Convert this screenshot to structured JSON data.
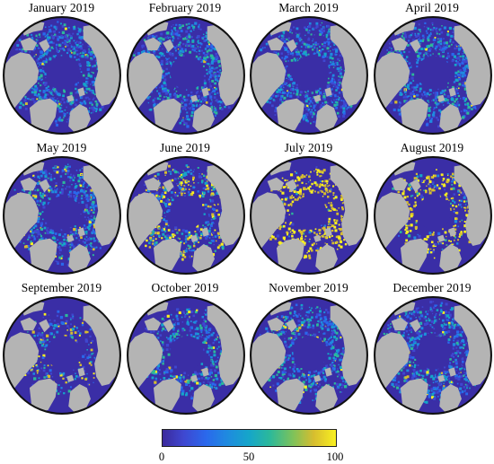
{
  "panels": [
    {
      "title": "January  2019",
      "yellow": 0.02,
      "cover": 0.92
    },
    {
      "title": "February  2019",
      "yellow": 0.02,
      "cover": 0.95
    },
    {
      "title": "March  2019",
      "yellow": 0.02,
      "cover": 0.96
    },
    {
      "title": "April  2019",
      "yellow": 0.03,
      "cover": 0.94
    },
    {
      "title": "May  2019",
      "yellow": 0.12,
      "cover": 0.85
    },
    {
      "title": "June  2019",
      "yellow": 0.38,
      "cover": 0.78
    },
    {
      "title": "July  2019",
      "yellow": 0.85,
      "cover": 0.55
    },
    {
      "title": "August  2019",
      "yellow": 0.7,
      "cover": 0.4
    },
    {
      "title": "September  2019",
      "yellow": 0.25,
      "cover": 0.3
    },
    {
      "title": "October  2019",
      "yellow": 0.1,
      "cover": 0.55
    },
    {
      "title": "November  2019",
      "yellow": 0.05,
      "cover": 0.78
    },
    {
      "title": "December  2019",
      "yellow": 0.03,
      "cover": 0.88
    }
  ],
  "colorbar": {
    "min": 0,
    "max": 100,
    "ticks": [
      "0",
      "50",
      "100"
    ],
    "tick_values": [
      0,
      50,
      100
    ],
    "colors": [
      "#3b2a9c",
      "#3f47d0",
      "#2a68ec",
      "#1f8ae0",
      "#15a6c9",
      "#2cb99a",
      "#7cc25b",
      "#d6bd2f",
      "#f9f020"
    ]
  },
  "map_colors": {
    "ocean": "#3a2ea6",
    "land": "#b4b4b4",
    "pole": "#3a2ea6",
    "rim": "#111111"
  }
}
